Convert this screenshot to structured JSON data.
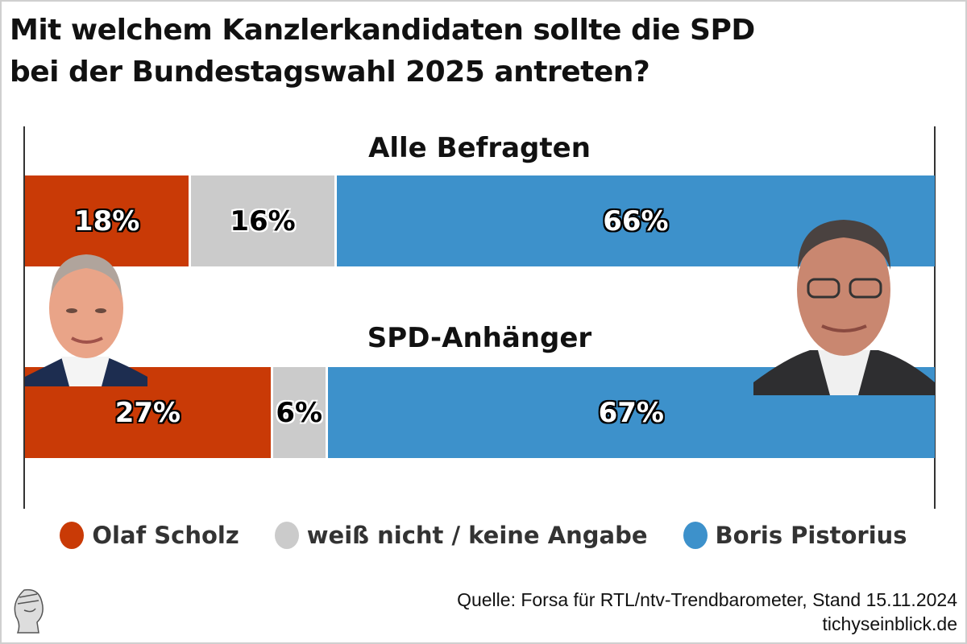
{
  "chart_data": {
    "type": "bar",
    "stacked": true,
    "orientation": "horizontal",
    "title": "Mit welchem Kanzlerkandidaten sollte die SPD bei der Bundestagswahl 2025 antreten?",
    "title_lines": [
      "Mit welchem Kanzlerkandidaten sollte die SPD",
      "bei der Bundestagswahl 2025 antreten?"
    ],
    "categories": [
      "Alle Befragten",
      "SPD-Anhänger"
    ],
    "series": [
      {
        "name": "Olaf Scholz",
        "color": "#c93a06",
        "values": [
          18,
          27
        ],
        "labels": [
          "18%",
          "27%"
        ]
      },
      {
        "name": "weiß nicht / keine Angabe",
        "color": "#cbcbcb",
        "values": [
          16,
          6
        ],
        "labels": [
          "16%",
          "6%"
        ]
      },
      {
        "name": "Boris Pistorius",
        "color": "#3d91cb",
        "values": [
          66,
          67
        ],
        "labels": [
          "66%",
          "67%"
        ]
      }
    ],
    "xlim": [
      0,
      100
    ],
    "grid": false,
    "legend_position": "bottom"
  },
  "source": "Quelle: Forsa für RTL/ntv-Trendbarometer, Stand 15.11.2024",
  "site": "tichyseinblick.de"
}
